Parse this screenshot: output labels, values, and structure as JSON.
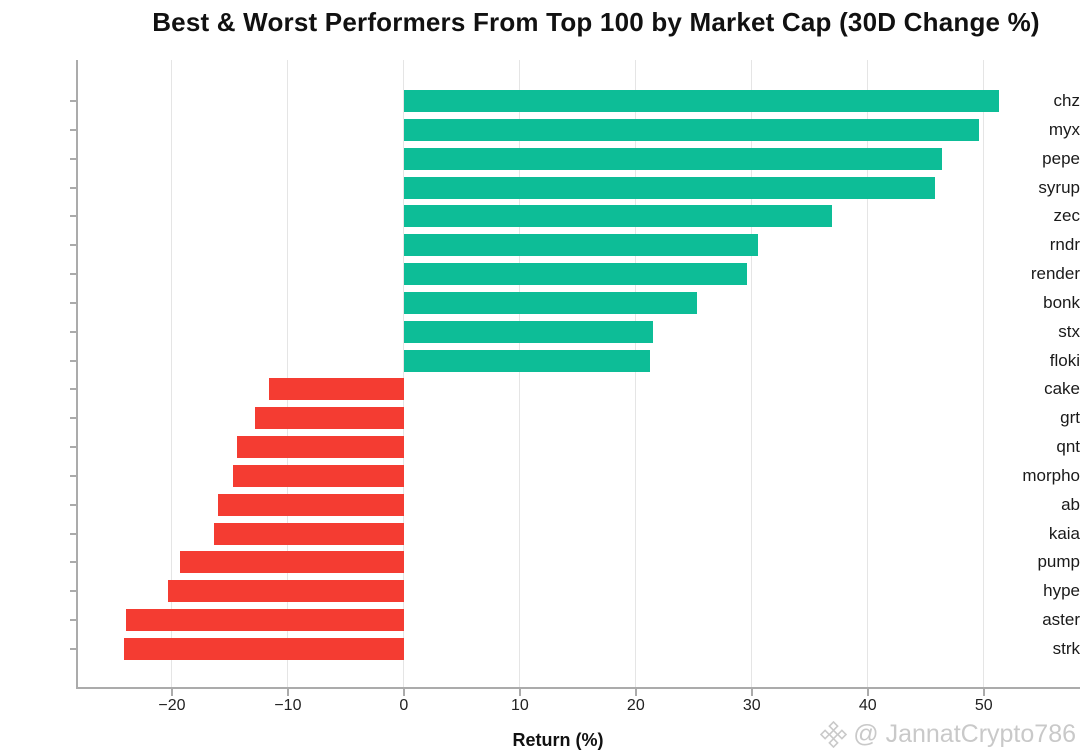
{
  "title": "Best & Worst Performers From Top 100 by Market Cap  (30D Change %)",
  "watermark": {
    "icon": "binance-diamond-icon",
    "handle": "@ JannatCrypto786"
  },
  "colors": {
    "positive_bar": "#0dbd97",
    "negative_bar": "#f43c32",
    "grid": "#e5e5e5",
    "spine": "#ababab",
    "watermark": "#c9c9c9"
  },
  "chart_data": {
    "type": "bar",
    "orientation": "horizontal",
    "title": "Best & Worst Performers From Top 100 by Market Cap  (30D Change %)",
    "xlabel": "Return (%)",
    "ylabel": "",
    "categories": [
      "chz",
      "myx",
      "pepe",
      "syrup",
      "zec",
      "rndr",
      "render",
      "bonk",
      "stx",
      "floki",
      "cake",
      "grt",
      "qnt",
      "morpho",
      "ab",
      "kaia",
      "pump",
      "hype",
      "aster",
      "strk"
    ],
    "values": [
      51.3,
      49.6,
      46.4,
      45.8,
      36.9,
      30.5,
      29.6,
      25.3,
      21.5,
      21.2,
      -11.6,
      -12.8,
      -14.4,
      -14.7,
      -16.0,
      -16.4,
      -19.3,
      -20.3,
      -24.0,
      -24.1
    ],
    "xticks": [
      -20,
      -10,
      0,
      10,
      20,
      30,
      40,
      50
    ],
    "xlim": [
      -28.1,
      58.3
    ],
    "grid": true,
    "legend": false
  }
}
